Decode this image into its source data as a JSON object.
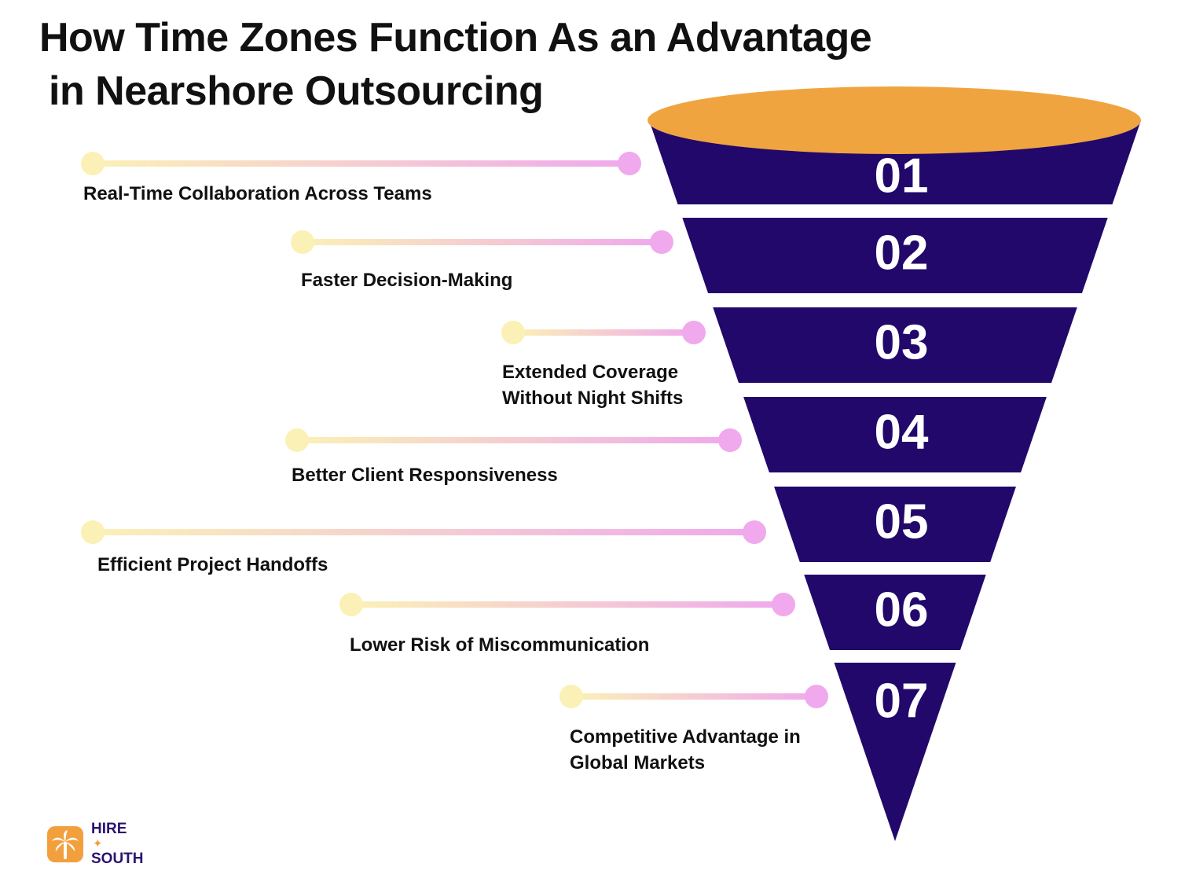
{
  "title": {
    "line1": "How Time Zones Function As an Advantage",
    "line2": "in Nearshore Outsourcing"
  },
  "colors": {
    "funnel_band": "#22086b",
    "funnel_top": "#f0a43f",
    "dot_start": "#fbf1b6",
    "dot_end": "#efa9ec",
    "text": "#111111"
  },
  "steps": [
    {
      "number": "01",
      "label": "Real-Time Collaboration Across Teams"
    },
    {
      "number": "02",
      "label": "Faster Decision-Making"
    },
    {
      "number": "03",
      "label": "Extended Coverage\nWithout Night Shifts"
    },
    {
      "number": "04",
      "label": "Better Client Responsiveness"
    },
    {
      "number": "05",
      "label": "Efficient Project Handoffs"
    },
    {
      "number": "06",
      "label": "Lower Risk of Miscommunication"
    },
    {
      "number": "07",
      "label": "Competitive Advantage in\nGlobal Markets"
    }
  ],
  "logo": {
    "line1": "HIRE",
    "line2": "SOUTH",
    "icon": "palm-tree-icon"
  }
}
